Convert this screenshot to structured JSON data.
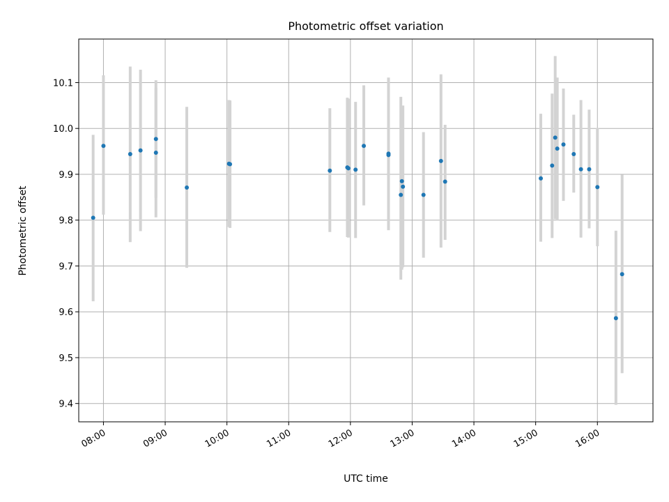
{
  "chart_data": {
    "type": "scatter",
    "title": "Photometric offset variation",
    "xlabel": "UTC time",
    "ylabel": "Photometric offset",
    "xlim": [
      "07:36",
      "16:54"
    ],
    "ylim": [
      9.36,
      10.195
    ],
    "grid": true,
    "x_ticks": [
      "08:00",
      "09:00",
      "10:00",
      "11:00",
      "12:00",
      "13:00",
      "14:00",
      "15:00",
      "16:00"
    ],
    "y_ticks": [
      9.4,
      9.5,
      9.6,
      9.7,
      9.8,
      9.9,
      10.0,
      10.1
    ],
    "y_tick_labels": [
      "9.4",
      "9.5",
      "9.6",
      "9.7",
      "9.8",
      "9.9",
      "10.0",
      "10.1"
    ],
    "marker_color": "#1f77b4",
    "errorbar_color": "#d3d3d3",
    "points": [
      {
        "t": "07:50",
        "y": 9.805,
        "lo": 9.623,
        "hi": 9.986
      },
      {
        "t": "08:00",
        "y": 9.962,
        "lo": 9.812,
        "hi": 10.116
      },
      {
        "t": "08:26",
        "y": 9.944,
        "lo": 9.752,
        "hi": 10.135
      },
      {
        "t": "08:36",
        "y": 9.952,
        "lo": 9.776,
        "hi": 10.128
      },
      {
        "t": "08:51",
        "y": 9.977,
        "lo": 9.849,
        "hi": 10.105
      },
      {
        "t": "08:51",
        "y": 9.947,
        "lo": 9.806,
        "hi": 10.088
      },
      {
        "t": "09:21",
        "y": 9.871,
        "lo": 9.696,
        "hi": 10.047
      },
      {
        "t": "10:02",
        "y": 9.923,
        "lo": 9.785,
        "hi": 10.062
      },
      {
        "t": "10:03",
        "y": 9.922,
        "lo": 9.783,
        "hi": 10.061
      },
      {
        "t": "11:40",
        "y": 9.908,
        "lo": 9.774,
        "hi": 10.044
      },
      {
        "t": "11:57",
        "y": 9.915,
        "lo": 9.763,
        "hi": 10.067
      },
      {
        "t": "11:58",
        "y": 9.913,
        "lo": 9.762,
        "hi": 10.065
      },
      {
        "t": "12:05",
        "y": 9.91,
        "lo": 9.761,
        "hi": 10.058
      },
      {
        "t": "12:13",
        "y": 9.962,
        "lo": 9.832,
        "hi": 10.094
      },
      {
        "t": "12:37",
        "y": 9.945,
        "lo": 9.778,
        "hi": 10.111
      },
      {
        "t": "12:37",
        "y": 9.942,
        "lo": 9.778,
        "hi": 10.108
      },
      {
        "t": "12:49",
        "y": 9.855,
        "lo": 9.67,
        "hi": 10.069
      },
      {
        "t": "12:50",
        "y": 9.885,
        "lo": 9.692,
        "hi": 10.047
      },
      {
        "t": "12:51",
        "y": 9.873,
        "lo": 9.697,
        "hi": 10.05
      },
      {
        "t": "13:11",
        "y": 9.855,
        "lo": 9.718,
        "hi": 9.992
      },
      {
        "t": "13:28",
        "y": 9.929,
        "lo": 9.74,
        "hi": 10.118
      },
      {
        "t": "13:32",
        "y": 9.884,
        "lo": 9.757,
        "hi": 10.008
      },
      {
        "t": "15:05",
        "y": 9.891,
        "lo": 9.753,
        "hi": 10.032
      },
      {
        "t": "15:16",
        "y": 9.919,
        "lo": 9.761,
        "hi": 10.076
      },
      {
        "t": "15:19",
        "y": 9.98,
        "lo": 9.802,
        "hi": 10.158
      },
      {
        "t": "15:21",
        "y": 9.956,
        "lo": 9.799,
        "hi": 10.111
      },
      {
        "t": "15:27",
        "y": 9.965,
        "lo": 9.842,
        "hi": 10.087
      },
      {
        "t": "15:37",
        "y": 9.944,
        "lo": 9.86,
        "hi": 10.03
      },
      {
        "t": "15:44",
        "y": 9.911,
        "lo": 9.762,
        "hi": 10.062
      },
      {
        "t": "15:52",
        "y": 9.911,
        "lo": 9.782,
        "hi": 10.041
      },
      {
        "t": "16:00",
        "y": 9.872,
        "lo": 9.743,
        "hi": 10.001
      },
      {
        "t": "16:18",
        "y": 9.586,
        "lo": 9.397,
        "hi": 9.777
      },
      {
        "t": "16:24",
        "y": 9.682,
        "lo": 9.466,
        "hi": 9.899
      }
    ]
  }
}
